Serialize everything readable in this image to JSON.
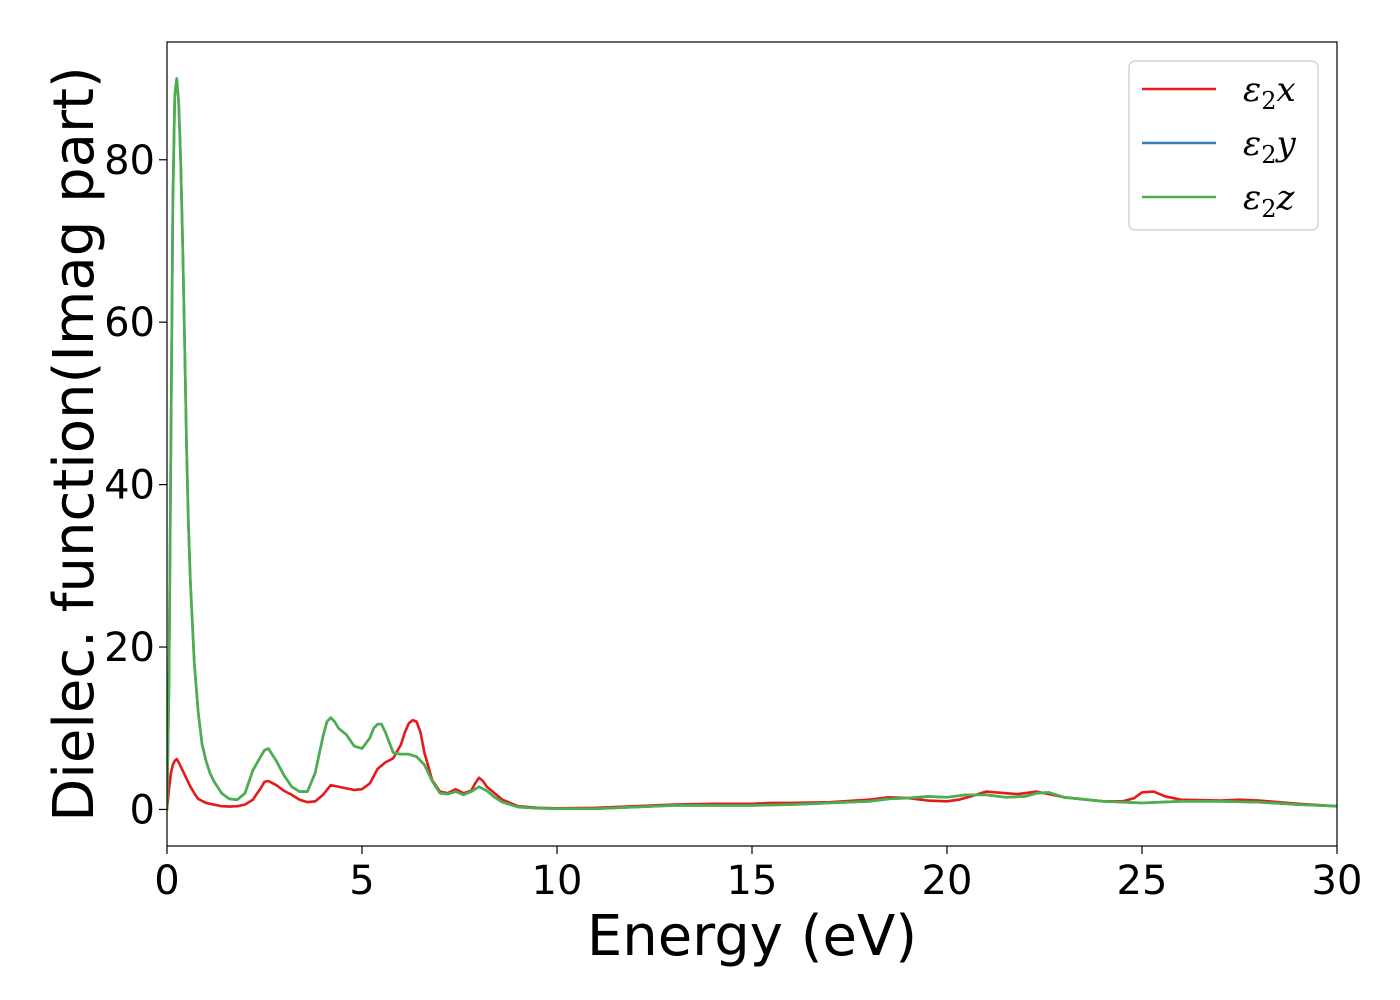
{
  "chart_data": {
    "type": "line",
    "title": "",
    "xlabel": "Energy (eV)",
    "ylabel": "Dielec. function(Imag part)",
    "xlim": [
      0,
      30
    ],
    "ylim": [
      -4.5,
      94.5
    ],
    "xticks": [
      0,
      5,
      10,
      15,
      20,
      25,
      30
    ],
    "yticks": [
      0,
      20,
      40,
      60,
      80
    ],
    "grid": false,
    "legend_position": "top-right",
    "series": [
      {
        "name_base": "ε",
        "name_sub": "2",
        "name_tail": "x",
        "color": "#e41a1c",
        "x": [
          0,
          0.05,
          0.1,
          0.15,
          0.2,
          0.25,
          0.3,
          0.4,
          0.5,
          0.6,
          0.7,
          0.8,
          1.0,
          1.2,
          1.4,
          1.6,
          1.8,
          2.0,
          2.2,
          2.4,
          2.5,
          2.6,
          2.8,
          3.0,
          3.2,
          3.4,
          3.6,
          3.8,
          4.0,
          4.2,
          4.4,
          4.6,
          4.8,
          5.0,
          5.2,
          5.4,
          5.6,
          5.8,
          6.0,
          6.1,
          6.2,
          6.3,
          6.4,
          6.5,
          6.6,
          6.8,
          7.0,
          7.2,
          7.4,
          7.6,
          7.8,
          7.9,
          8.0,
          8.1,
          8.2,
          8.4,
          8.6,
          8.8,
          9.0,
          9.5,
          10,
          11,
          12,
          13,
          14,
          15,
          15.5,
          16,
          17,
          18,
          18.5,
          19,
          19.5,
          20,
          20.3,
          20.6,
          21,
          21.5,
          21.8,
          22,
          22.3,
          23,
          24,
          24.5,
          24.8,
          25.0,
          25.3,
          25.6,
          26,
          27,
          27.5,
          28,
          29,
          30
        ],
        "y": [
          0.0,
          2.5,
          4.5,
          5.5,
          6.0,
          6.2,
          5.8,
          4.8,
          3.8,
          2.8,
          2.0,
          1.3,
          0.8,
          0.6,
          0.4,
          0.35,
          0.4,
          0.6,
          1.2,
          2.6,
          3.4,
          3.5,
          3.0,
          2.3,
          1.8,
          1.2,
          0.9,
          1.0,
          1.8,
          3.0,
          2.8,
          2.6,
          2.4,
          2.5,
          3.2,
          5.0,
          5.8,
          6.3,
          8.0,
          9.5,
          10.6,
          11.0,
          10.8,
          9.5,
          7.0,
          3.6,
          2.2,
          2.0,
          2.5,
          2.0,
          2.3,
          3.2,
          3.9,
          3.5,
          2.8,
          2.0,
          1.2,
          0.8,
          0.4,
          0.2,
          0.15,
          0.2,
          0.4,
          0.6,
          0.7,
          0.7,
          0.8,
          0.8,
          0.9,
          1.2,
          1.5,
          1.4,
          1.1,
          1.0,
          1.2,
          1.6,
          2.2,
          2.0,
          1.9,
          2.0,
          2.2,
          1.5,
          1.0,
          1.0,
          1.4,
          2.1,
          2.2,
          1.6,
          1.2,
          1.1,
          1.2,
          1.1,
          0.7,
          0.4
        ]
      },
      {
        "name_base": "ε",
        "name_sub": "2",
        "name_tail": "y",
        "color": "#377eb8",
        "x": [
          0,
          0.05,
          0.1,
          0.15,
          0.2,
          0.25,
          0.3,
          0.35,
          0.4,
          0.45,
          0.5,
          0.55,
          0.6,
          0.7,
          0.8,
          0.9,
          1.0,
          1.1,
          1.2,
          1.4,
          1.6,
          1.8,
          2.0,
          2.2,
          2.4,
          2.5,
          2.6,
          2.8,
          3.0,
          3.2,
          3.4,
          3.6,
          3.8,
          4.0,
          4.1,
          4.2,
          4.3,
          4.4,
          4.6,
          4.8,
          5.0,
          5.2,
          5.3,
          5.4,
          5.5,
          5.6,
          5.8,
          6.0,
          6.2,
          6.4,
          6.6,
          6.8,
          7.0,
          7.2,
          7.4,
          7.6,
          7.8,
          8.0,
          8.2,
          8.4,
          8.6,
          8.8,
          9.0,
          9.5,
          10,
          11,
          12,
          13,
          14,
          15,
          16,
          17,
          18,
          18.5,
          19,
          19.5,
          20,
          20.5,
          21,
          21.5,
          22,
          22.3,
          22.6,
          23,
          24,
          25,
          26,
          27,
          28,
          29,
          30
        ],
        "y": [
          0.0,
          15.0,
          45.0,
          75.0,
          88.0,
          90.0,
          87.0,
          80.0,
          70.0,
          58.0,
          45.0,
          35.0,
          28.0,
          18.0,
          12.0,
          8.0,
          6.0,
          4.5,
          3.5,
          2.0,
          1.3,
          1.2,
          2.0,
          4.8,
          6.5,
          7.3,
          7.5,
          6.0,
          4.2,
          2.8,
          2.2,
          2.2,
          4.5,
          9.0,
          10.8,
          11.3,
          10.8,
          10.0,
          9.2,
          7.8,
          7.5,
          8.8,
          10.0,
          10.5,
          10.5,
          9.5,
          7.0,
          6.8,
          6.8,
          6.5,
          5.5,
          3.5,
          2.0,
          1.9,
          2.2,
          1.8,
          2.2,
          2.8,
          2.3,
          1.5,
          0.9,
          0.6,
          0.3,
          0.15,
          0.1,
          0.1,
          0.3,
          0.5,
          0.5,
          0.5,
          0.6,
          0.8,
          1.0,
          1.3,
          1.4,
          1.6,
          1.5,
          1.8,
          1.8,
          1.5,
          1.6,
          2.0,
          2.1,
          1.5,
          1.0,
          0.8,
          1.0,
          1.0,
          0.9,
          0.6,
          0.4
        ]
      },
      {
        "name_base": "ε",
        "name_sub": "2",
        "name_tail": "z",
        "color": "#4daf4a",
        "x": [
          0,
          0.05,
          0.1,
          0.15,
          0.2,
          0.25,
          0.3,
          0.35,
          0.4,
          0.45,
          0.5,
          0.55,
          0.6,
          0.7,
          0.8,
          0.9,
          1.0,
          1.1,
          1.2,
          1.4,
          1.6,
          1.8,
          2.0,
          2.2,
          2.4,
          2.5,
          2.6,
          2.8,
          3.0,
          3.2,
          3.4,
          3.6,
          3.8,
          4.0,
          4.1,
          4.2,
          4.3,
          4.4,
          4.6,
          4.8,
          5.0,
          5.2,
          5.3,
          5.4,
          5.5,
          5.6,
          5.8,
          6.0,
          6.2,
          6.4,
          6.6,
          6.8,
          7.0,
          7.2,
          7.4,
          7.6,
          7.8,
          8.0,
          8.2,
          8.4,
          8.6,
          8.8,
          9.0,
          9.5,
          10,
          11,
          12,
          13,
          14,
          15,
          16,
          17,
          18,
          18.5,
          19,
          19.5,
          20,
          20.5,
          21,
          21.5,
          22,
          22.3,
          22.6,
          23,
          24,
          25,
          26,
          27,
          28,
          29,
          30
        ],
        "y": [
          0.0,
          15.0,
          45.0,
          75.0,
          88.0,
          90.0,
          87.0,
          80.0,
          70.0,
          58.0,
          45.0,
          35.0,
          28.0,
          18.0,
          12.0,
          8.0,
          6.0,
          4.5,
          3.5,
          2.0,
          1.3,
          1.2,
          2.0,
          4.8,
          6.5,
          7.3,
          7.5,
          6.0,
          4.2,
          2.8,
          2.2,
          2.2,
          4.5,
          9.0,
          10.8,
          11.3,
          10.8,
          10.0,
          9.2,
          7.8,
          7.5,
          8.8,
          10.0,
          10.5,
          10.5,
          9.5,
          7.0,
          6.8,
          6.8,
          6.5,
          5.5,
          3.5,
          2.0,
          1.9,
          2.2,
          1.8,
          2.2,
          2.8,
          2.3,
          1.5,
          0.9,
          0.6,
          0.3,
          0.15,
          0.1,
          0.1,
          0.3,
          0.5,
          0.5,
          0.5,
          0.6,
          0.8,
          1.0,
          1.3,
          1.4,
          1.6,
          1.5,
          1.8,
          1.8,
          1.5,
          1.6,
          2.0,
          2.1,
          1.5,
          1.0,
          0.8,
          1.0,
          1.0,
          0.9,
          0.6,
          0.4
        ]
      }
    ]
  }
}
